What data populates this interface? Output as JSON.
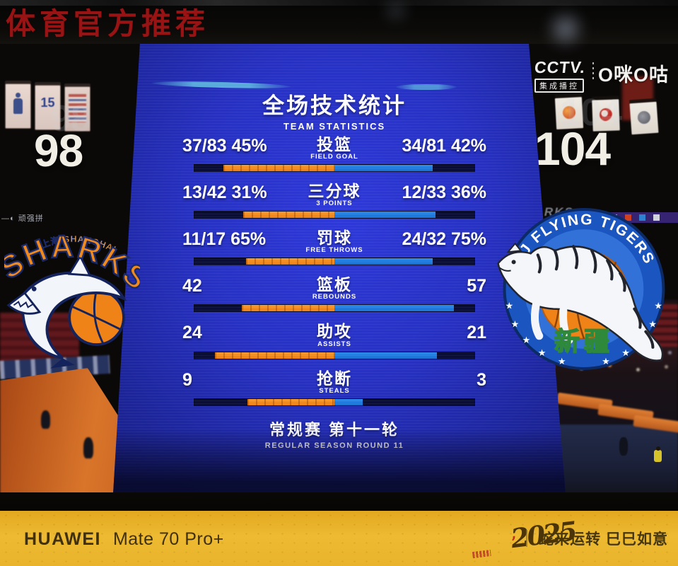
{
  "watermark": "体育官方推荐",
  "broadcast": {
    "cctv": "CCTV.",
    "cctv_sub": "集成播控",
    "migu": "O咪O咕"
  },
  "teams": {
    "home": {
      "top_line": "上海 SHANGHAI",
      "wordmark": "SHARKS",
      "score": "98",
      "jersey_number": "15"
    },
    "away": {
      "arc_text": "XJ FLYING TIGERS",
      "bottom_cn": "新疆",
      "score": "104"
    }
  },
  "led_ribbons": {
    "left": "—◐ 顽强拼",
    "right": "SHARKS"
  },
  "panel": {
    "title_cn": "全场技术统计",
    "title_en": "TEAM STATISTICS",
    "footer_cn": "常规赛 第十一轮",
    "footer_en": "REGULAR SEASON ROUND 11"
  },
  "chart_data": {
    "type": "bar",
    "title": "全场技术统计 / TEAM STATISTICS",
    "orientation": "horizontal-diverging-from-center",
    "legend_position": "none",
    "teams": [
      {
        "name": "Shanghai Sharks",
        "score": 98,
        "color": "#f5861f"
      },
      {
        "name": "Xinjiang Flying Tigers",
        "score": 104,
        "color": "#1e7de2"
      }
    ],
    "categories": [
      "FIELD GOAL",
      "3 POINTS",
      "FREE THROWS",
      "REBOUNDS",
      "ASSISTS",
      "STEALS"
    ],
    "rows": [
      {
        "label_cn": "投篮",
        "label_en": "FIELD GOAL",
        "left": "37/83 45%",
        "right": "34/81 42%",
        "left_frac": 0.79,
        "right_frac": 0.7
      },
      {
        "label_cn": "三分球",
        "label_en": "3 POINTS",
        "left": "13/42 31%",
        "right": "12/33 36%",
        "left_frac": 0.65,
        "right_frac": 0.72
      },
      {
        "label_cn": "罚球",
        "label_en": "FREE THROWS",
        "left": "11/17 65%",
        "right": "24/32 75%",
        "left_frac": 0.63,
        "right_frac": 0.7
      },
      {
        "label_cn": "篮板",
        "label_en": "REBOUNDS",
        "left": "42",
        "right": "57",
        "left_frac": 0.66,
        "right_frac": 0.85
      },
      {
        "label_cn": "助攻",
        "label_en": "ASSISTS",
        "left": "24",
        "right": "21",
        "left_frac": 0.85,
        "right_frac": 0.73
      },
      {
        "label_cn": "抢断",
        "label_en": "STEALS",
        "left": "9",
        "right": "3",
        "left_frac": 0.62,
        "right_frac": 0.2
      }
    ]
  },
  "footer_bar": {
    "brand_bold": "HUAWEI",
    "brand_rest": "Mate 70 Pro+",
    "year": "2025",
    "slogan": "蛇来运转  巳巳如意"
  },
  "colors": {
    "screen_blue": "#2733c8",
    "home_bar": "#f5861f",
    "away_bar": "#1e7de2",
    "bar_track": "#0a0e36",
    "gold_bar": "#ecb62e",
    "watermark_red": "#a01414"
  }
}
